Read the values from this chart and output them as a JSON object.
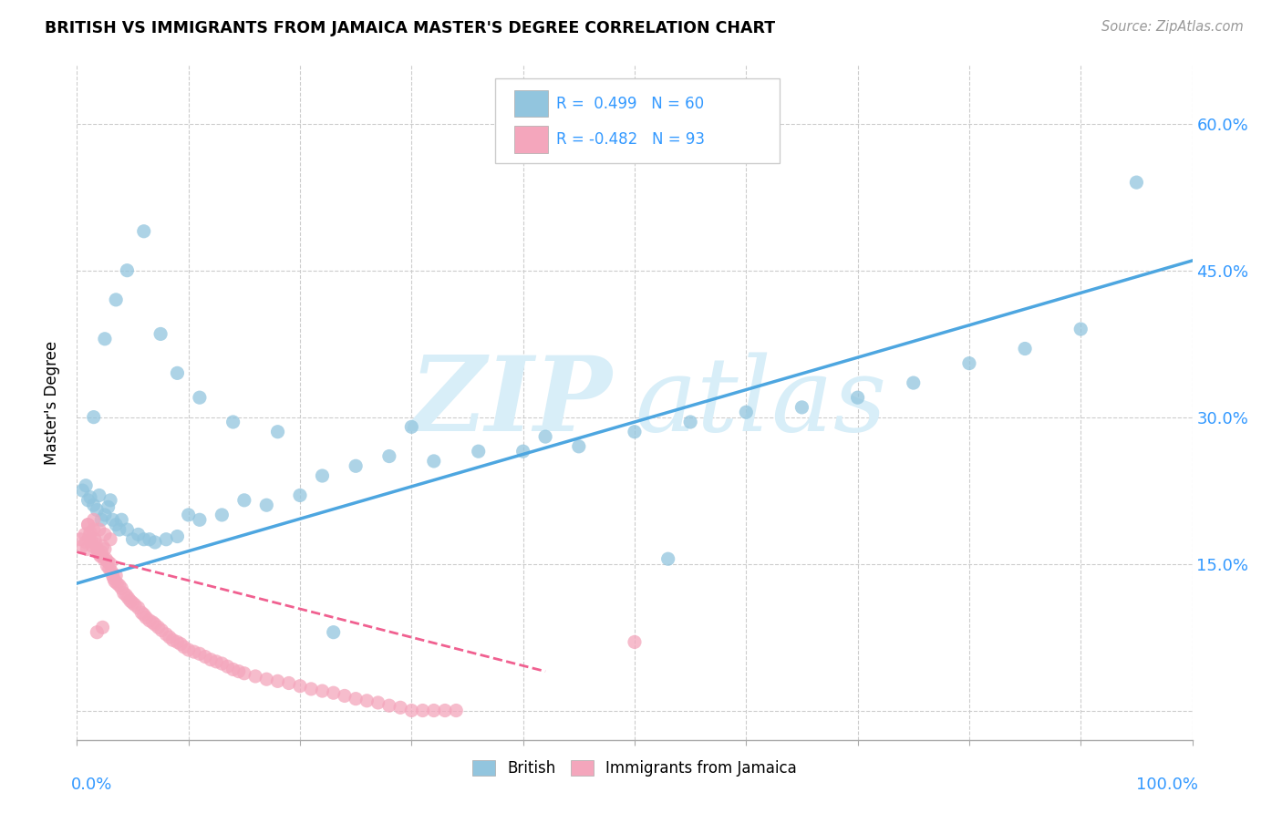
{
  "title": "BRITISH VS IMMIGRANTS FROM JAMAICA MASTER'S DEGREE CORRELATION CHART",
  "source": "Source: ZipAtlas.com",
  "ylabel": "Master's Degree",
  "y_ticks": [
    0.0,
    0.15,
    0.3,
    0.45,
    0.6
  ],
  "y_tick_labels_right": [
    "",
    "15.0%",
    "30.0%",
    "45.0%",
    "60.0%"
  ],
  "x_range": [
    0,
    1.0
  ],
  "y_range": [
    -0.03,
    0.66
  ],
  "british_R": 0.499,
  "british_N": 60,
  "jamaica_R": -0.482,
  "jamaica_N": 93,
  "british_color": "#92c5de",
  "jamaica_color": "#f4a6bc",
  "british_line_color": "#4da6e0",
  "jamaica_line_color": "#f06090",
  "watermark_color": "#d8eef8",
  "legend_british_label": "British",
  "legend_jamaica_label": "Immigrants from Jamaica",
  "british_line_x0": 0.0,
  "british_line_y0": 0.13,
  "british_line_x1": 1.0,
  "british_line_y1": 0.46,
  "jamaica_line_x0": 0.0,
  "jamaica_line_y0": 0.162,
  "jamaica_line_x1": 0.42,
  "jamaica_line_y1": 0.04
}
